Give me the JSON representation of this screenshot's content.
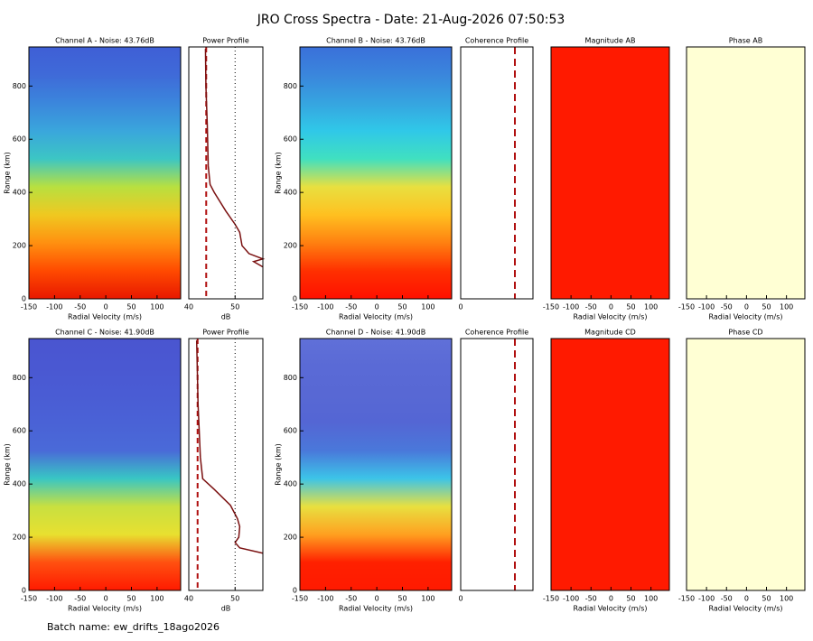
{
  "header": {
    "title": "JRO Cross Spectra - Date: 21-Aug-2026 07:50:53"
  },
  "footer": {
    "batch_name": "Batch name: ew_drifts_18ago2026"
  },
  "chart_data": [
    {
      "type": "heatmap",
      "title": "Channel A - Noise: 43.76dB",
      "xlabel": "Radial Velocity (m/s)",
      "ylabel": "Range (km)",
      "xlim": [
        -150,
        146
      ],
      "xticks": [
        -150,
        -100,
        -50,
        0,
        50,
        100
      ],
      "ylim": [
        0,
        947
      ],
      "yticks": [
        0,
        200,
        400,
        600,
        800
      ],
      "colors": [
        "#3f5fd6",
        "#3f6ad8",
        "#3b86dc",
        "#3aa6dc",
        "#3cc6c4",
        "#b8e040",
        "#f0c820",
        "#ff9010",
        "#ff4a00",
        "#e81800"
      ]
    },
    {
      "type": "profile",
      "title": "Power Profile",
      "xlabel": "dB",
      "xlim": [
        40,
        56
      ],
      "xticks": [
        40,
        50
      ],
      "ylim": [
        0,
        947
      ],
      "noise_line": 43.76,
      "series": [
        {
          "color": "#7a1010",
          "values": [
            43.6,
            43.7,
            44.0,
            44.2,
            44.6,
            45.5,
            48,
            50,
            51,
            51.5,
            53,
            56,
            54,
            56
          ],
          "y": [
            940,
            800,
            650,
            500,
            430,
            400,
            330,
            280,
            250,
            200,
            170,
            150,
            140,
            120
          ]
        }
      ]
    },
    {
      "type": "heatmap",
      "title": "Channel B - Noise: 43.76dB",
      "xlabel": "Radial Velocity (m/s)",
      "ylabel": "Range (km)",
      "xlim": [
        -150,
        146
      ],
      "xticks": [
        -150,
        -100,
        -50,
        0,
        50,
        100
      ],
      "ylim": [
        0,
        947
      ],
      "yticks": [
        0,
        200,
        400,
        600,
        800
      ],
      "colors": [
        "#3a70da",
        "#3a86dc",
        "#36a4e0",
        "#30c8e8",
        "#40e0c0",
        "#e8e040",
        "#ffc020",
        "#ff8010",
        "#ff3000",
        "#ff1000"
      ]
    },
    {
      "type": "coherence",
      "title": "Coherence Profile",
      "xlim": [
        0,
        1
      ],
      "xticks": [
        0
      ],
      "threshold": 0.75
    },
    {
      "type": "fill",
      "title": "Magnitude AB",
      "xlabel": "Radial Velocity (m/s)",
      "xlim": [
        -150,
        146
      ],
      "xticks": [
        -150,
        -100,
        -50,
        0,
        50,
        100
      ],
      "color": "#ff1a00"
    },
    {
      "type": "fill",
      "title": "Phase AB",
      "xlabel": "Radial Velocity (m/s)",
      "xlim": [
        -150,
        146
      ],
      "xticks": [
        -150,
        -100,
        -50,
        0,
        50,
        100
      ],
      "color": "#ffffd4"
    },
    {
      "type": "heatmap",
      "title": "Channel C - Noise: 41.90dB",
      "xlabel": "Radial Velocity (m/s)",
      "ylabel": "Range (km)",
      "xlim": [
        -150,
        146
      ],
      "xticks": [
        -150,
        -100,
        -50,
        0,
        50,
        100
      ],
      "ylim": [
        0,
        947
      ],
      "yticks": [
        0,
        200,
        400,
        600,
        800
      ],
      "colors": [
        "#4a55d0",
        "#4a58d2",
        "#4a5cd4",
        "#4a62d6",
        "#4a6ad8",
        "#38c6c4",
        "#c8e040",
        "#e8e030",
        "#ff5010",
        "#ff1a00"
      ]
    },
    {
      "type": "profile",
      "title": "Power Profile",
      "xlabel": "dB",
      "xlim": [
        40,
        56
      ],
      "xticks": [
        40,
        50
      ],
      "ylim": [
        0,
        947
      ],
      "noise_line": 41.9,
      "series": [
        {
          "color": "#7a1010",
          "values": [
            41.7,
            42.0,
            42.5,
            43,
            45.5,
            49,
            50.5,
            51,
            50.8,
            50,
            51,
            56
          ],
          "y": [
            940,
            700,
            500,
            420,
            380,
            320,
            270,
            240,
            200,
            180,
            160,
            140
          ]
        }
      ]
    },
    {
      "type": "heatmap",
      "title": "Channel D - Noise: 41.90dB",
      "xlabel": "Radial Velocity (m/s)",
      "ylabel": "Range (km)",
      "xlim": [
        -150,
        146
      ],
      "xticks": [
        -150,
        -100,
        -50,
        0,
        50,
        100
      ],
      "ylim": [
        0,
        947
      ],
      "yticks": [
        0,
        200,
        400,
        600,
        800
      ],
      "colors": [
        "#6070d8",
        "#5a6ad6",
        "#5868d4",
        "#5466d4",
        "#4a78da",
        "#3cc4e8",
        "#e8e040",
        "#ffa020",
        "#ff2000",
        "#ff1a00"
      ]
    },
    {
      "type": "coherence",
      "title": "Coherence Profile",
      "xlim": [
        0,
        1
      ],
      "xticks": [
        0
      ],
      "threshold": 0.75
    },
    {
      "type": "fill",
      "title": "Magnitude CD",
      "xlabel": "Radial Velocity (m/s)",
      "xlim": [
        -150,
        146
      ],
      "xticks": [
        -150,
        -100,
        -50,
        0,
        50,
        100
      ],
      "color": "#ff1a00"
    },
    {
      "type": "fill",
      "title": "Phase CD",
      "xlabel": "Radial Velocity (m/s)",
      "xlim": [
        -150,
        146
      ],
      "xticks": [
        -150,
        -100,
        -50,
        0,
        50,
        100
      ],
      "color": "#ffffd4"
    }
  ]
}
